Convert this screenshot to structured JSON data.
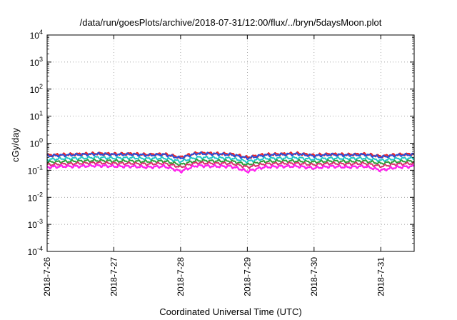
{
  "chart_data": {
    "type": "line",
    "title": "/data/run/goesPlots/archive/2018-07-31/12:00/flux/../bryn/5daysMoon.plot",
    "xlabel": "Coordinated Universal Time (UTC)",
    "ylabel": "cGy/day",
    "yscale": "log",
    "ylim": [
      0.0001,
      10000
    ],
    "xlim_days": [
      0,
      5.5
    ],
    "y_ticks": [
      {
        "base": "10",
        "exp": "4"
      },
      {
        "base": "10",
        "exp": "3"
      },
      {
        "base": "10",
        "exp": "2"
      },
      {
        "base": "10",
        "exp": "1"
      },
      {
        "base": "10",
        "exp": "0"
      },
      {
        "base": "10",
        "exp": "-1"
      },
      {
        "base": "10",
        "exp": "-2"
      },
      {
        "base": "10",
        "exp": "-3"
      },
      {
        "base": "10",
        "exp": "-4"
      }
    ],
    "x_ticks": [
      "2018-7-26",
      "2018-7-27",
      "2018-7-28",
      "2018-7-29",
      "2018-7-30",
      "2018-7-31"
    ],
    "grid": true,
    "legend": "none",
    "series": [
      {
        "color": "#e8262d",
        "x": [
          0,
          0.25,
          0.5,
          0.75,
          1.0,
          1.25,
          1.5,
          1.75,
          2.0,
          2.25,
          2.5,
          2.75,
          3.0,
          3.25,
          3.5,
          3.75,
          4.0,
          4.25,
          4.5,
          4.75,
          5.0,
          5.25,
          5.5
        ],
        "values": [
          0.36,
          0.38,
          0.4,
          0.42,
          0.4,
          0.41,
          0.38,
          0.4,
          0.3,
          0.44,
          0.42,
          0.4,
          0.3,
          0.38,
          0.4,
          0.42,
          0.36,
          0.4,
          0.38,
          0.4,
          0.33,
          0.38,
          0.4
        ]
      },
      {
        "color": "#2a4fd8",
        "x": [
          0,
          0.25,
          0.5,
          0.75,
          1.0,
          1.25,
          1.5,
          1.75,
          2.0,
          2.25,
          2.5,
          2.75,
          3.0,
          3.25,
          3.5,
          3.75,
          4.0,
          4.25,
          4.5,
          4.75,
          5.0,
          5.25,
          5.5
        ],
        "values": [
          0.34,
          0.36,
          0.38,
          0.4,
          0.38,
          0.39,
          0.36,
          0.38,
          0.28,
          0.42,
          0.4,
          0.38,
          0.28,
          0.36,
          0.38,
          0.4,
          0.34,
          0.38,
          0.36,
          0.38,
          0.31,
          0.36,
          0.38
        ]
      },
      {
        "color": "#22c6c6",
        "x": [
          0,
          0.25,
          0.5,
          0.75,
          1.0,
          1.25,
          1.5,
          1.75,
          2.0,
          2.25,
          2.5,
          2.75,
          3.0,
          3.25,
          3.5,
          3.75,
          4.0,
          4.25,
          4.5,
          4.75,
          5.0,
          5.25,
          5.5
        ],
        "values": [
          0.25,
          0.27,
          0.28,
          0.3,
          0.28,
          0.29,
          0.27,
          0.28,
          0.21,
          0.3,
          0.29,
          0.28,
          0.21,
          0.27,
          0.28,
          0.29,
          0.25,
          0.28,
          0.27,
          0.28,
          0.23,
          0.27,
          0.28
        ]
      },
      {
        "color": "#2f9e3a",
        "x": [
          0,
          0.25,
          0.5,
          0.75,
          1.0,
          1.25,
          1.5,
          1.75,
          2.0,
          2.25,
          2.5,
          2.75,
          3.0,
          3.25,
          3.5,
          3.75,
          4.0,
          4.25,
          4.5,
          4.75,
          5.0,
          5.25,
          5.5
        ],
        "values": [
          0.2,
          0.21,
          0.22,
          0.23,
          0.22,
          0.22,
          0.21,
          0.22,
          0.16,
          0.23,
          0.22,
          0.22,
          0.16,
          0.21,
          0.22,
          0.22,
          0.2,
          0.22,
          0.21,
          0.22,
          0.18,
          0.21,
          0.22
        ]
      },
      {
        "color": "#d6336c",
        "x": [
          0,
          0.25,
          0.5,
          0.75,
          1.0,
          1.25,
          1.5,
          1.75,
          2.0,
          2.25,
          2.5,
          2.75,
          3.0,
          3.25,
          3.5,
          3.75,
          4.0,
          4.25,
          4.5,
          4.75,
          5.0,
          5.25,
          5.5
        ],
        "values": [
          0.16,
          0.17,
          0.18,
          0.19,
          0.18,
          0.18,
          0.17,
          0.18,
          0.13,
          0.19,
          0.18,
          0.18,
          0.13,
          0.17,
          0.18,
          0.18,
          0.16,
          0.18,
          0.17,
          0.18,
          0.14,
          0.17,
          0.18
        ]
      },
      {
        "color": "#ff22ee",
        "x": [
          0,
          0.25,
          0.5,
          0.75,
          1.0,
          1.25,
          1.5,
          1.75,
          2.0,
          2.25,
          2.5,
          2.75,
          3.0,
          3.25,
          3.5,
          3.75,
          4.0,
          4.25,
          4.5,
          4.75,
          5.0,
          5.25,
          5.5
        ],
        "values": [
          0.13,
          0.14,
          0.14,
          0.15,
          0.14,
          0.14,
          0.13,
          0.14,
          0.09,
          0.15,
          0.14,
          0.14,
          0.09,
          0.13,
          0.14,
          0.14,
          0.12,
          0.14,
          0.13,
          0.14,
          0.1,
          0.13,
          0.14
        ]
      }
    ]
  }
}
